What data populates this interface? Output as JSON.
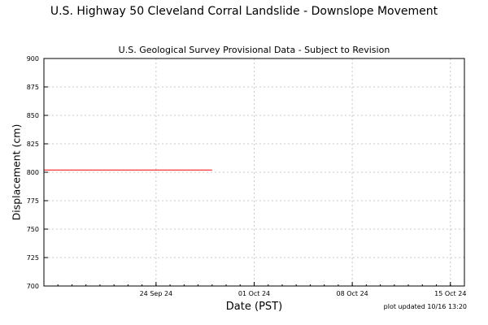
{
  "chart_data": {
    "type": "line",
    "title": "U.S. Highway 50 Cleveland Corral Landslide - Downslope Movement",
    "subtitle": "U.S. Geological Survey Provisional Data - Subject to Revision",
    "xlabel": "Date (PST)",
    "ylabel": "Displacement (cm)",
    "footnote": "plot updated 10/16 13:20",
    "xlim": [
      "2024-09-16",
      "2024-10-16"
    ],
    "ylim": [
      700,
      900
    ],
    "yticks": [
      700,
      725,
      750,
      775,
      800,
      825,
      850,
      875,
      900
    ],
    "xticks": [
      {
        "date": "2024-09-24",
        "label": "24 Sep 24"
      },
      {
        "date": "2024-10-01",
        "label": "01 Oct 24"
      },
      {
        "date": "2024-10-08",
        "label": "08 Oct 24"
      },
      {
        "date": "2024-10-15",
        "label": "15 Oct 24"
      }
    ],
    "grid": true,
    "line_color": "#ff0000",
    "series": [
      {
        "values": [
          {
            "x": "2024-09-16",
            "y": 802
          },
          {
            "x": "2024-09-17",
            "y": 802
          },
          {
            "x": "2024-09-18",
            "y": 802
          },
          {
            "x": "2024-09-19",
            "y": 802
          },
          {
            "x": "2024-09-20",
            "y": 802
          },
          {
            "x": "2024-09-21",
            "y": 802
          },
          {
            "x": "2024-09-22",
            "y": 802
          },
          {
            "x": "2024-09-23",
            "y": 802
          },
          {
            "x": "2024-09-24",
            "y": 802
          },
          {
            "x": "2024-09-25",
            "y": 802
          },
          {
            "x": "2024-09-26",
            "y": 802
          },
          {
            "x": "2024-09-27",
            "y": 802
          },
          {
            "x": "2024-09-28",
            "y": 802
          }
        ]
      }
    ]
  }
}
